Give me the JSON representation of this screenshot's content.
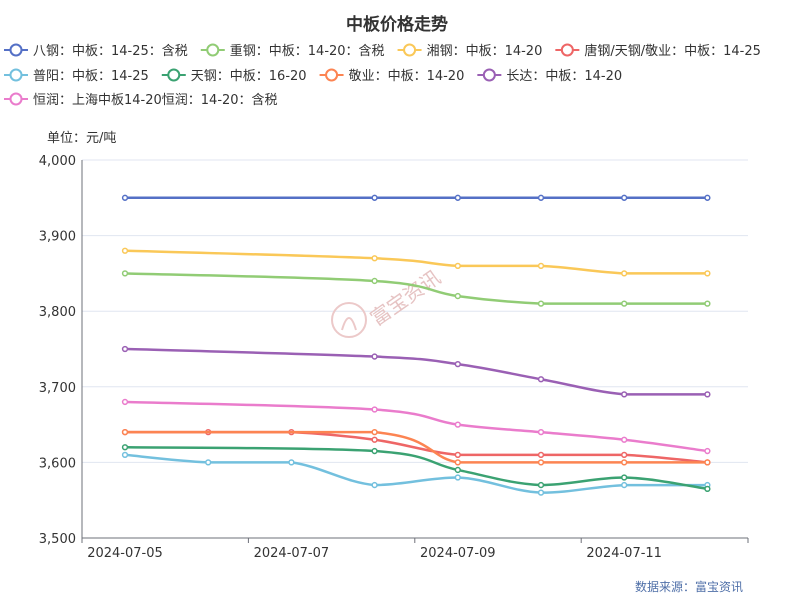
{
  "chart_data": {
    "type": "line",
    "title": "中板价格走势",
    "ylabel": "单位：元/吨",
    "ylim": [
      3500,
      4000
    ],
    "yticks": [
      "3,500",
      "3,600",
      "3,700",
      "3,800",
      "3,900",
      "4,000"
    ],
    "xtick_labels": [
      "2024-07-05",
      "2024-07-07",
      "2024-07-09",
      "2024-07-11"
    ],
    "x": [
      "2024-07-05",
      "2024-07-06",
      "2024-07-07",
      "2024-07-08",
      "2024-07-09",
      "2024-07-10",
      "2024-07-11",
      "2024-07-12"
    ],
    "grid": "horizontal",
    "legend_position": "top",
    "series": [
      {
        "name": "八钢：中板：14-25：含税",
        "color": "#5470c6",
        "points": [
          [
            "2024-07-05",
            3950
          ],
          [
            "2024-07-08",
            3950
          ],
          [
            "2024-07-09",
            3950
          ],
          [
            "2024-07-10",
            3950
          ],
          [
            "2024-07-11",
            3950
          ],
          [
            "2024-07-12",
            3950
          ]
        ]
      },
      {
        "name": "重钢：中板：14-20：含税",
        "color": "#91cc75",
        "points": [
          [
            "2024-07-05",
            3850
          ],
          [
            "2024-07-08",
            3840
          ],
          [
            "2024-07-09",
            3820
          ],
          [
            "2024-07-10",
            3810
          ],
          [
            "2024-07-11",
            3810
          ],
          [
            "2024-07-12",
            3810
          ]
        ]
      },
      {
        "name": "湘钢：中板：14-20",
        "color": "#fac858",
        "points": [
          [
            "2024-07-05",
            3880
          ],
          [
            "2024-07-08",
            3870
          ],
          [
            "2024-07-09",
            3860
          ],
          [
            "2024-07-10",
            3860
          ],
          [
            "2024-07-11",
            3850
          ],
          [
            "2024-07-12",
            3850
          ]
        ]
      },
      {
        "name": "唐钢/天钢/敬业：中板：14-25",
        "color": "#ee6666",
        "points": [
          [
            "2024-07-05",
            3640
          ],
          [
            "2024-07-06",
            3640
          ],
          [
            "2024-07-07",
            3640
          ],
          [
            "2024-07-08",
            3630
          ],
          [
            "2024-07-09",
            3610
          ],
          [
            "2024-07-10",
            3610
          ],
          [
            "2024-07-11",
            3610
          ],
          [
            "2024-07-12",
            3600
          ]
        ]
      },
      {
        "name": "普阳：中板：14-25",
        "color": "#73c0de",
        "points": [
          [
            "2024-07-05",
            3610
          ],
          [
            "2024-07-06",
            3600
          ],
          [
            "2024-07-07",
            3600
          ],
          [
            "2024-07-08",
            3570
          ],
          [
            "2024-07-09",
            3580
          ],
          [
            "2024-07-10",
            3560
          ],
          [
            "2024-07-11",
            3570
          ],
          [
            "2024-07-12",
            3570
          ]
        ]
      },
      {
        "name": "天钢：中板：16-20",
        "color": "#3ba272",
        "points": [
          [
            "2024-07-05",
            3620
          ],
          [
            "2024-07-08",
            3615
          ],
          [
            "2024-07-09",
            3590
          ],
          [
            "2024-07-10",
            3570
          ],
          [
            "2024-07-11",
            3580
          ],
          [
            "2024-07-12",
            3565
          ]
        ]
      },
      {
        "name": "敬业：中板：14-20",
        "color": "#fc8452",
        "points": [
          [
            "2024-07-05",
            3640
          ],
          [
            "2024-07-08",
            3640
          ],
          [
            "2024-07-09",
            3600
          ],
          [
            "2024-07-10",
            3600
          ],
          [
            "2024-07-11",
            3600
          ],
          [
            "2024-07-12",
            3600
          ]
        ]
      },
      {
        "name": "长达：中板：14-20",
        "color": "#9a60b4",
        "points": [
          [
            "2024-07-05",
            3750
          ],
          [
            "2024-07-08",
            3740
          ],
          [
            "2024-07-09",
            3730
          ],
          [
            "2024-07-10",
            3710
          ],
          [
            "2024-07-11",
            3690
          ],
          [
            "2024-07-12",
            3690
          ]
        ]
      },
      {
        "name": "恒润：上海中板14-20恒润：14-20：含税",
        "color": "#ea7ccc",
        "points": [
          [
            "2024-07-05",
            3680
          ],
          [
            "2024-07-08",
            3670
          ],
          [
            "2024-07-09",
            3650
          ],
          [
            "2024-07-10",
            3640
          ],
          [
            "2024-07-11",
            3630
          ],
          [
            "2024-07-12",
            3615
          ]
        ]
      }
    ]
  },
  "watermark": "富宝资讯",
  "source": "数据来源：富宝资讯"
}
